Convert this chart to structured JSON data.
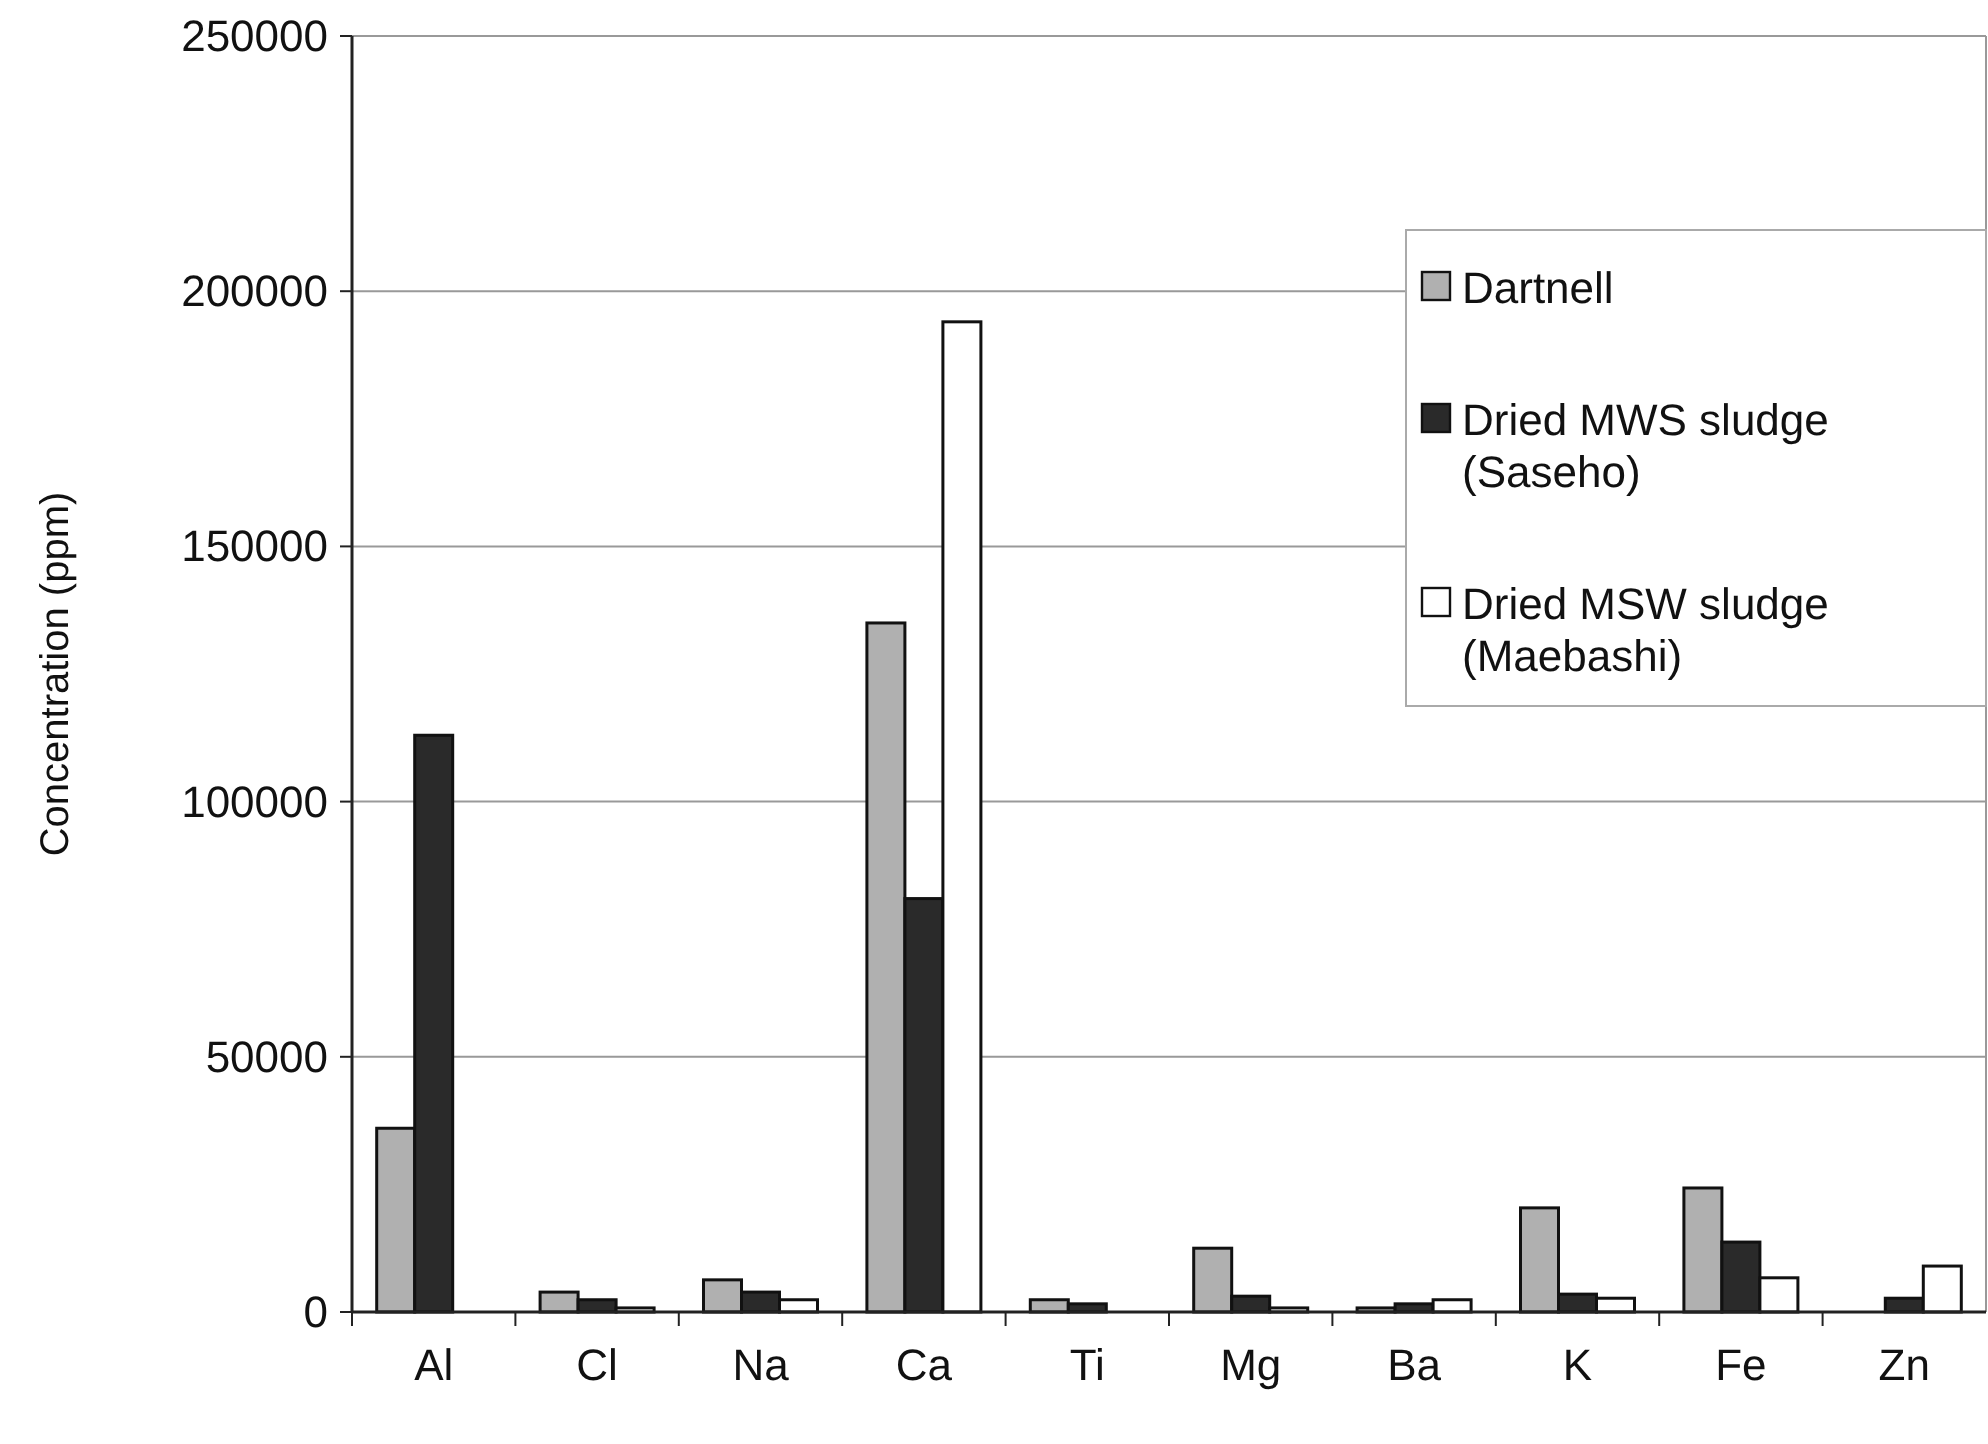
{
  "chart_data": {
    "type": "bar",
    "ylabel": "Concentration (ppm)",
    "categories": [
      "Al",
      "Cl",
      "Na",
      "Ca",
      "Ti",
      "Mg",
      "Ba",
      "K",
      "Fe",
      "Zn"
    ],
    "series": [
      {
        "name": "Dartnell",
        "color": "#b0b0b0",
        "values": [
          36000,
          3900,
          6300,
          135000,
          2400,
          12500,
          800,
          20400,
          24300,
          null
        ]
      },
      {
        "name": "Dried MWS sludge (Saseho)",
        "color": "#2a2a2a",
        "values": [
          113000,
          2400,
          3900,
          81000,
          1600,
          3100,
          1600,
          3500,
          13700,
          2700
        ]
      },
      {
        "name": "Dried MSW sludge (Maebashi)",
        "color": "#ffffff",
        "values": [
          null,
          800,
          2400,
          194000,
          null,
          800,
          2400,
          2700,
          6700,
          9000
        ]
      }
    ],
    "ylim": [
      0,
      250000
    ],
    "yticks": [
      0,
      50000,
      100000,
      150000,
      200000,
      250000
    ],
    "grid": "y",
    "legend": "top right"
  }
}
